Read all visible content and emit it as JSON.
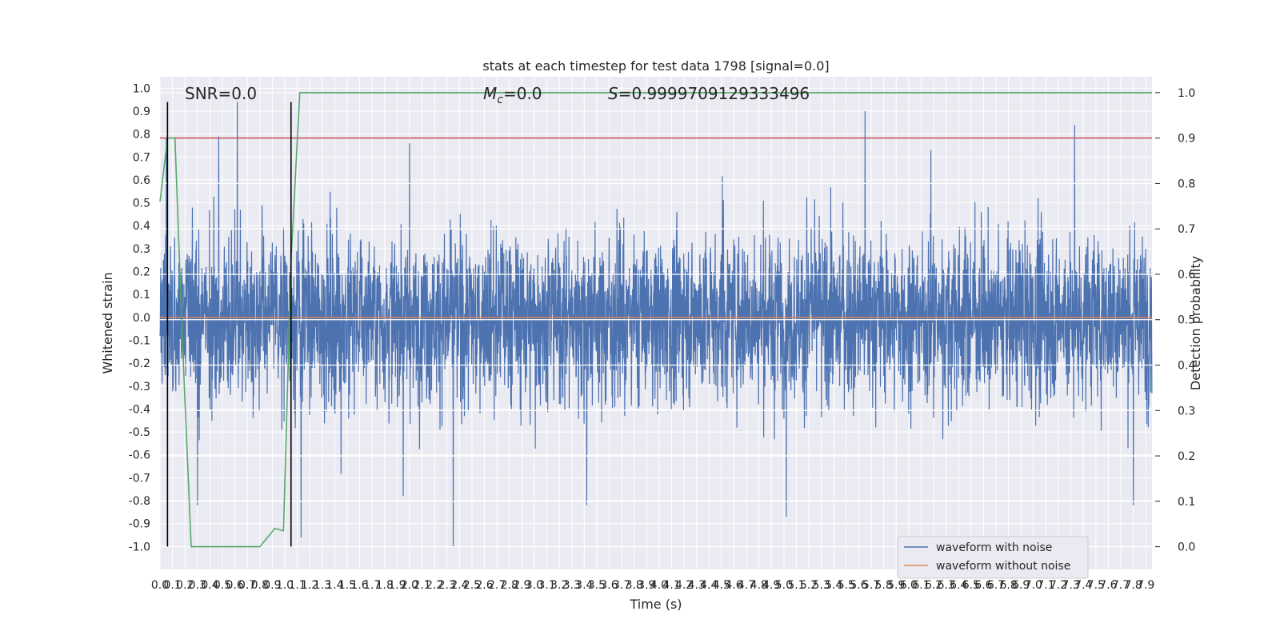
{
  "chart_data": {
    "type": "line",
    "title": "stats at each timestep for test data 1798 [signal=0.0]",
    "xlabel": "Time (s)",
    "ylabel": "Whitened strain",
    "y2label": "Detection probability",
    "xlim": [
      0.0,
      7.95
    ],
    "ylim": [
      -1.1,
      1.05
    ],
    "y2lim": [
      -0.05,
      1.035
    ],
    "xtick_step": 0.1,
    "xtick_max": 7.9,
    "yticks": [
      1.0,
      0.9,
      0.8,
      0.7,
      0.6,
      0.5,
      0.4,
      0.3,
      0.2,
      0.1,
      0.0,
      -0.1,
      -0.2,
      -0.3,
      -0.4,
      -0.5,
      -0.6,
      -0.7,
      -0.8,
      -0.9,
      -1.0
    ],
    "y2ticks": [
      1.0,
      0.9,
      0.8,
      0.7,
      0.6,
      0.5,
      0.4,
      0.3,
      0.2,
      0.1,
      0.0
    ],
    "grid": true,
    "legend_position": "lower-right",
    "annotations": {
      "snr": "SNR=0.0",
      "mc_symbol": "M",
      "mc_sub": "c",
      "mc_value": "=0.0",
      "s_symbol": "S",
      "s_value": "=0.9999709129333496"
    },
    "series": [
      {
        "name": "waveform with noise",
        "color": "#4c72b0",
        "description_values": "dense noise, roughly +/-0.35 with spikes",
        "sample_rate": 512,
        "noise_std": 0.2,
        "spikes": [
          {
            "x": 0.62,
            "y": 0.94
          },
          {
            "x": 5.65,
            "y": 0.9
          },
          {
            "x": 7.33,
            "y": 0.84
          },
          {
            "x": 0.47,
            "y": 0.79
          },
          {
            "x": 2.0,
            "y": 0.76
          },
          {
            "x": 2.35,
            "y": -1.0
          },
          {
            "x": 1.13,
            "y": -0.96
          },
          {
            "x": 5.02,
            "y": -0.87
          },
          {
            "x": 0.05,
            "y": 0.78
          },
          {
            "x": 0.3,
            "y": -0.82
          },
          {
            "x": 3.42,
            "y": -0.82
          },
          {
            "x": 1.95,
            "y": -0.78
          },
          {
            "x": 7.8,
            "y": -0.82
          }
        ]
      },
      {
        "name": "waveform without noise",
        "color": "#dd8452",
        "x": [
          0.0,
          7.95
        ],
        "y": [
          0.0,
          0.0
        ]
      },
      {
        "color": "#55a868",
        "axis": "right",
        "x": [
          0.0,
          0.06,
          0.12,
          0.18,
          0.25,
          0.3,
          0.4,
          0.5,
          0.6,
          0.7,
          0.8,
          0.92,
          0.99,
          1.05,
          1.12,
          7.95
        ],
        "y": [
          0.76,
          0.9,
          0.9,
          0.45,
          0.0,
          0.0,
          0.0,
          0.0,
          0.0,
          0.0,
          0.0,
          0.04,
          0.035,
          0.63,
          1.0,
          1.0
        ]
      },
      {
        "color": "#c44e52",
        "axis": "right",
        "x": [
          0.0,
          7.95
        ],
        "y": [
          0.9,
          0.9
        ]
      }
    ],
    "vlines": [
      {
        "x": 0.06,
        "ymin": -1.0,
        "ymax": 0.94,
        "color": "#000000"
      },
      {
        "x": 1.05,
        "ymin": -1.0,
        "ymax": 0.94,
        "color": "#000000"
      }
    ]
  }
}
